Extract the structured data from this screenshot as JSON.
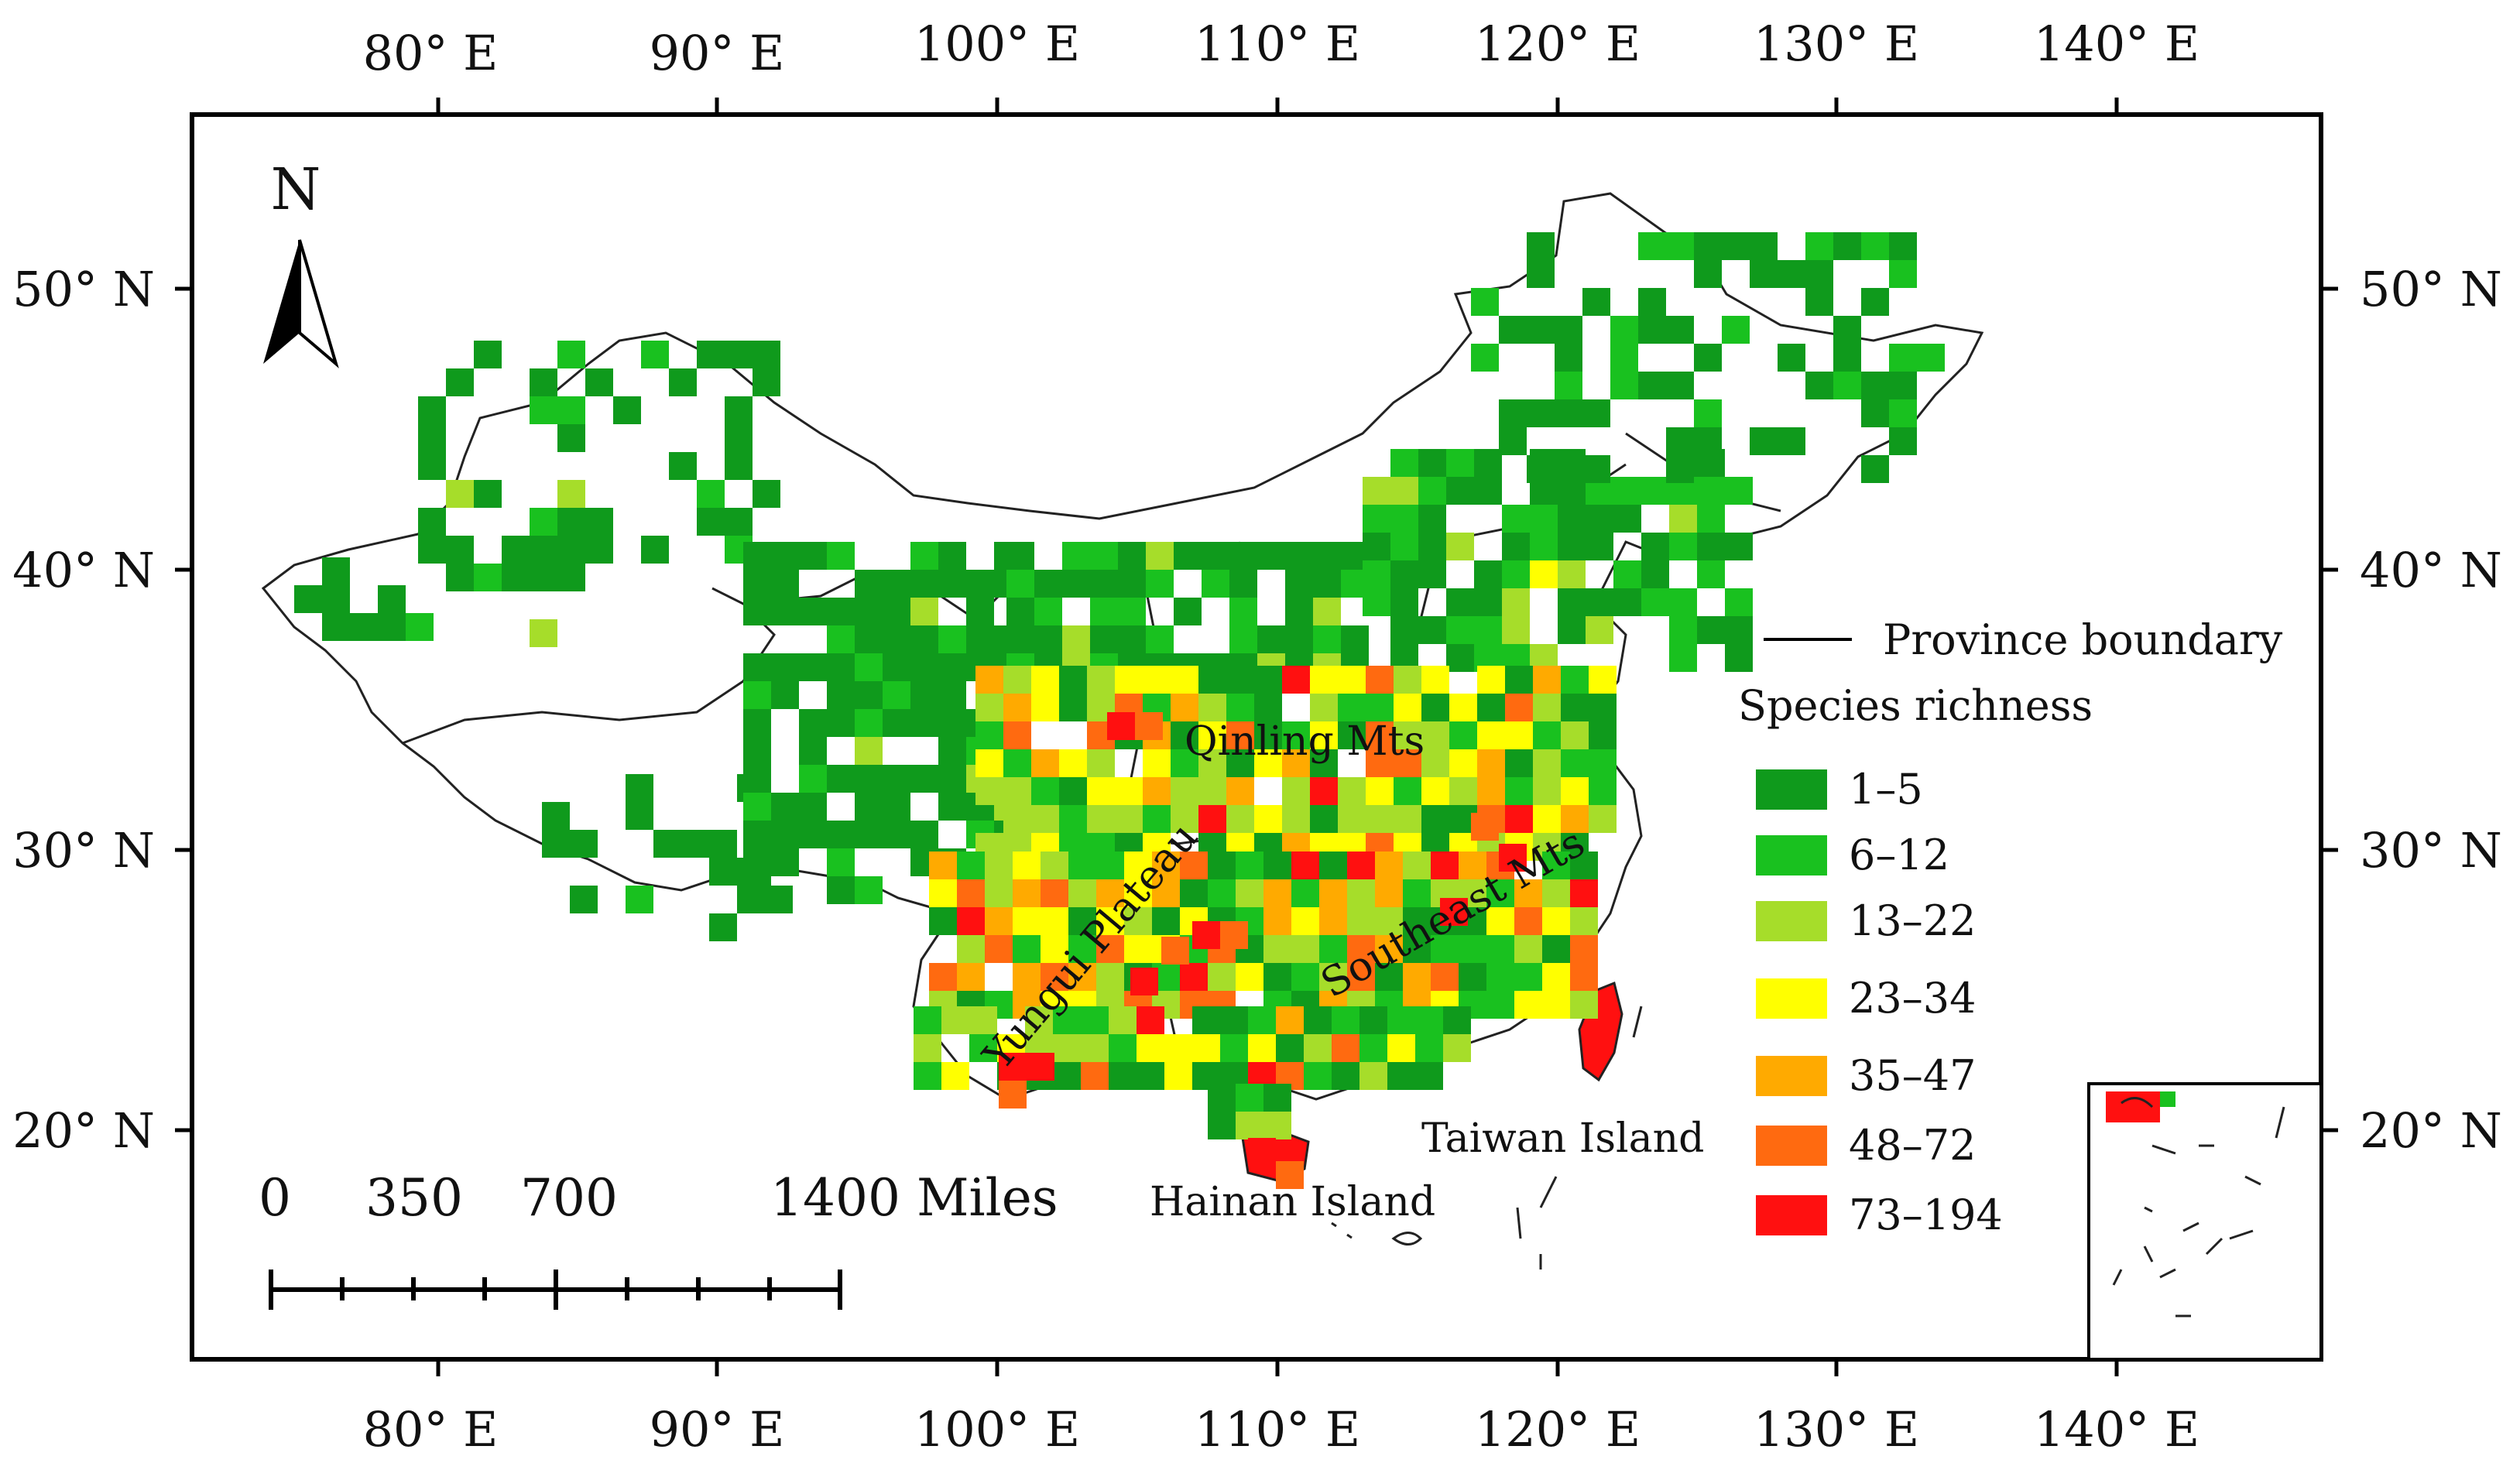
{
  "map": {
    "north_arrow_label": "N",
    "top_longitude_labels": [
      "80° E",
      "90° E",
      "100° E",
      "110° E",
      "120° E",
      "130° E",
      "140° E"
    ],
    "bottom_longitude_labels": [
      "80° E",
      "90° E",
      "100° E",
      "110° E",
      "120° E",
      "130° E",
      "140° E"
    ],
    "left_latitude_labels": [
      "50° N",
      "40° N",
      "30° N",
      "20° N"
    ],
    "right_latitude_labels": [
      "50° N",
      "40° N",
      "30° N",
      "20° N"
    ],
    "legend": {
      "boundary_label": "Province boundary",
      "title": "Species richness",
      "classes": [
        {
          "label": "1–5",
          "color": "#0f9a1c"
        },
        {
          "label": "6–12",
          "color": "#19c11f"
        },
        {
          "label": "13–22",
          "color": "#a6dd2a"
        },
        {
          "label": "23–34",
          "color": "#ffff00"
        },
        {
          "label": "35–47",
          "color": "#ffaa00"
        },
        {
          "label": "48–72",
          "color": "#ff6a10"
        },
        {
          "label": "73–194",
          "color": "#ff1010"
        }
      ]
    },
    "scale_bar": {
      "labels": [
        "0",
        "350",
        "700",
        "1400 Miles"
      ]
    },
    "region_labels": {
      "qinling": "Qinling Mts",
      "southeast": "Southeast Mts",
      "yungui": "Yungui Plateau",
      "taiwan": "Taiwan Island",
      "hainan": "Hainan Island"
    }
  }
}
